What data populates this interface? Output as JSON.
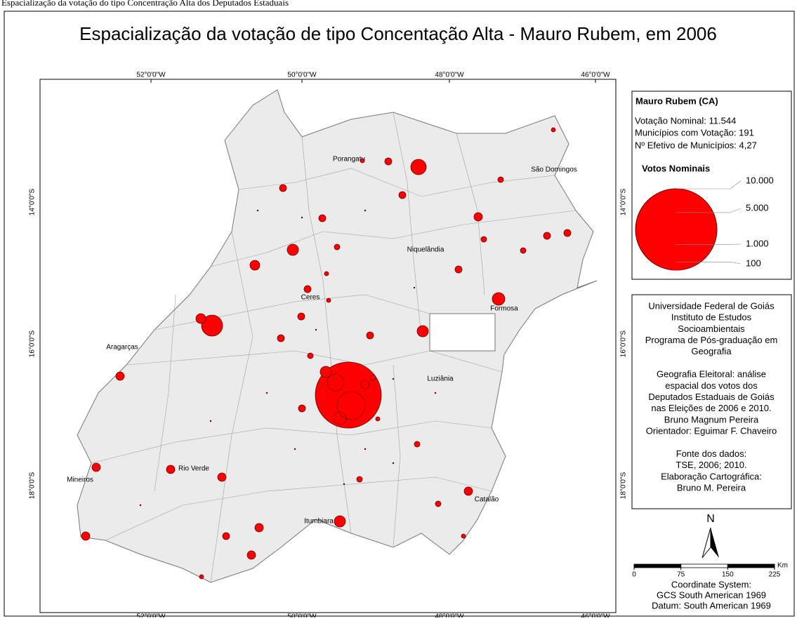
{
  "caption": "Espacialização da votação do tipo Concentração Alta dos Deputados Estaduais",
  "title": "Espacialização da votação de tipo Concentação Alta - Mauro Rubem, em 2006",
  "coordinates": {
    "longitudes": [
      "52°0'0\"W",
      "50°0'0\"W",
      "48°0'0\"W",
      "46°0'0\"W"
    ],
    "latitudes": [
      "14°0'0\"S",
      "16°0'0\"S",
      "18°0'0\"S"
    ]
  },
  "cities": [
    "Porangatu",
    "São Domingos",
    "Niquelândia",
    "Ceres",
    "Formosa",
    "Aragarças",
    "Luziânia",
    "Mineiros",
    "Rio Verde",
    "Catalão",
    "Itumbiara"
  ],
  "legend": {
    "heading": "Mauro Rubem (CA)",
    "stats": [
      "Votação Nominal: 11.544",
      "Municípios com Votação: 191",
      "Nº Efetivo de Municípios: 4,27"
    ],
    "size_title": "Votos Nominais",
    "sizes": [
      {
        "value": 10000,
        "label": "10.000"
      },
      {
        "value": 5000,
        "label": "5.000"
      },
      {
        "value": 1000,
        "label": "1.000"
      },
      100
    ]
  },
  "credits": [
    "Universidade Federal de Goiás",
    "Instituto de Estudos",
    "Socioambientais",
    "Programa de Pós-graduação em",
    "Geografia",
    "",
    "Geografia Eleitoral: análise",
    "espacial dos votos dos",
    "Deputados Estaduais de Goiás",
    "nas Eleições de 2006 e 2010.",
    "Bruno Magnum Pereira",
    "Orientador: Eguimar F. Chaveiro",
    "",
    "Fonte dos dados:",
    "TSE, 2006; 2010.",
    "Elaboração Cartográfica:",
    "Bruno M. Pereira"
  ],
  "north": "N",
  "scale": {
    "ticks": [
      0,
      75,
      150,
      225
    ],
    "unit": "Km"
  },
  "reference": [
    "Coordinate System:",
    "GCS South American 1969",
    "Datum: South American 1969"
  ]
}
